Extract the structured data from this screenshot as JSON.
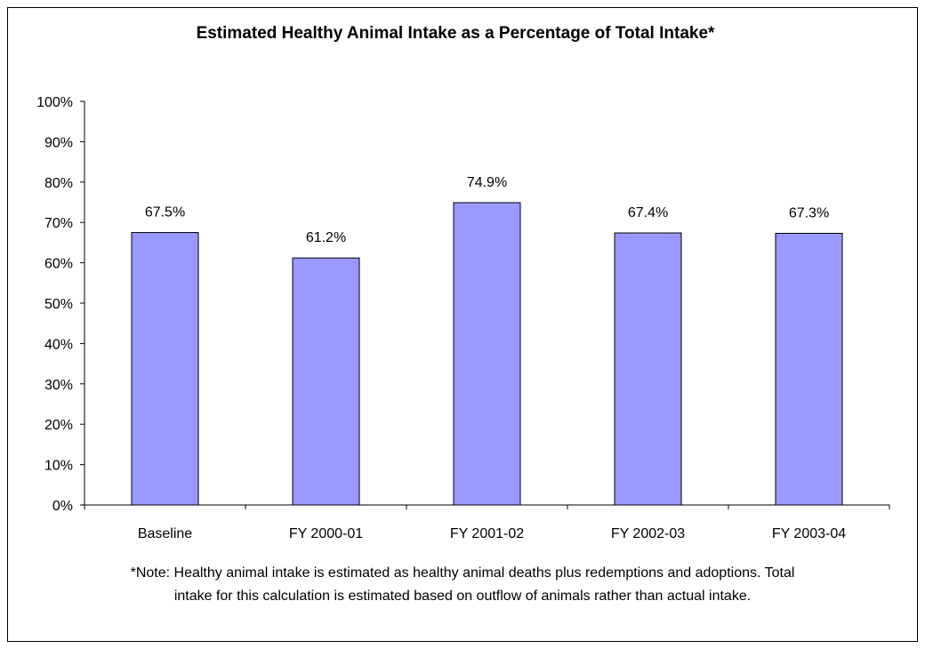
{
  "chart_data": {
    "type": "bar",
    "title": "Estimated Healthy Animal Intake as a Percentage of Total Intake*",
    "categories": [
      "Baseline",
      "FY 2000-01",
      "FY 2001-02",
      "FY 2002-03",
      "FY 2003-04"
    ],
    "values": [
      67.5,
      61.2,
      74.9,
      67.4,
      67.3
    ],
    "value_labels": [
      "67.5%",
      "61.2%",
      "74.9%",
      "67.4%",
      "67.3%"
    ],
    "y_ticks": [
      "0%",
      "10%",
      "20%",
      "30%",
      "40%",
      "50%",
      "60%",
      "70%",
      "80%",
      "90%",
      "100%"
    ],
    "ylim": [
      0,
      100
    ],
    "bar_color": "#9999ff",
    "grid": false,
    "note_lines": [
      "*Note: Healthy animal intake is estimated as healthy animal deaths plus redemptions and adoptions.  Total",
      "intake for this calculation is estimated based on outflow of animals rather than actual intake."
    ]
  }
}
